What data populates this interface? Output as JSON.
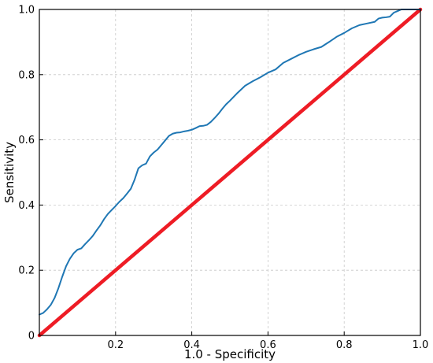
{
  "chart_data": {
    "type": "line",
    "title": "",
    "xlabel": "1.0 - Specificity",
    "ylabel": "Sensitivity",
    "xlim": [
      0,
      1
    ],
    "ylim": [
      0,
      1
    ],
    "grid": true,
    "xticks": [
      0.2,
      0.4,
      0.6,
      0.8,
      1.0
    ],
    "xtick_labels": [
      "0.2",
      "0.4",
      "0.6",
      "0.8",
      "1.0"
    ],
    "yticks": [
      0,
      0.2,
      0.4,
      0.6,
      0.8,
      1.0
    ],
    "ytick_labels": [
      "0",
      "0.2",
      "0.4",
      "0.6",
      "0.8",
      "1.0"
    ],
    "series": [
      {
        "color": "#1f77b4",
        "x": [
          0.0,
          0.01,
          0.02,
          0.03,
          0.04,
          0.05,
          0.06,
          0.07,
          0.08,
          0.09,
          0.1,
          0.11,
          0.12,
          0.13,
          0.14,
          0.15,
          0.16,
          0.17,
          0.18,
          0.19,
          0.2,
          0.21,
          0.22,
          0.23,
          0.24,
          0.25,
          0.26,
          0.27,
          0.28,
          0.29,
          0.3,
          0.31,
          0.32,
          0.33,
          0.34,
          0.35,
          0.36,
          0.37,
          0.38,
          0.39,
          0.4,
          0.41,
          0.42,
          0.43,
          0.44,
          0.45,
          0.46,
          0.47,
          0.48,
          0.49,
          0.5,
          0.52,
          0.54,
          0.56,
          0.58,
          0.6,
          0.62,
          0.64,
          0.66,
          0.68,
          0.7,
          0.72,
          0.74,
          0.76,
          0.78,
          0.8,
          0.82,
          0.84,
          0.86,
          0.88,
          0.89,
          0.9,
          0.91,
          0.92,
          0.93,
          0.94,
          0.95,
          0.96,
          0.97,
          0.98,
          0.99,
          1.0
        ],
        "y": [
          0.064,
          0.069,
          0.08,
          0.094,
          0.115,
          0.145,
          0.18,
          0.212,
          0.235,
          0.252,
          0.263,
          0.267,
          0.28,
          0.292,
          0.305,
          0.322,
          0.338,
          0.357,
          0.373,
          0.385,
          0.397,
          0.41,
          0.421,
          0.435,
          0.45,
          0.478,
          0.513,
          0.522,
          0.527,
          0.549,
          0.561,
          0.57,
          0.584,
          0.598,
          0.612,
          0.619,
          0.622,
          0.623,
          0.626,
          0.628,
          0.631,
          0.636,
          0.642,
          0.643,
          0.646,
          0.655,
          0.667,
          0.68,
          0.695,
          0.709,
          0.72,
          0.744,
          0.766,
          0.78,
          0.792,
          0.806,
          0.816,
          0.836,
          0.848,
          0.86,
          0.87,
          0.878,
          0.885,
          0.9,
          0.916,
          0.928,
          0.942,
          0.952,
          0.957,
          0.962,
          0.972,
          0.975,
          0.976,
          0.978,
          0.99,
          0.995,
          1.0,
          1.0,
          1.0,
          1.0,
          1.0,
          1.0
        ]
      },
      {
        "color": "#ee1c25",
        "x": [
          0,
          1
        ],
        "y": [
          0,
          1
        ]
      }
    ]
  }
}
